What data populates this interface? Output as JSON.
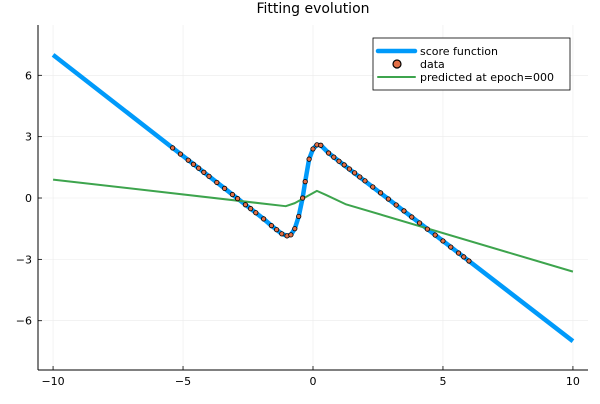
{
  "chart_data": {
    "type": "line",
    "title": "Fitting evolution",
    "xlabel": "",
    "ylabel": "",
    "xlim": [
      -10.58,
      10.58
    ],
    "ylim": [
      -8.41,
      8.46
    ],
    "grid": true,
    "legend_position": "top-right",
    "x_ticks": [
      -10,
      -5,
      0,
      5,
      10
    ],
    "x_tick_labels": [
      "−10",
      "−5",
      "0",
      "5",
      "10"
    ],
    "y_ticks": [
      -6,
      -3,
      0,
      3,
      6
    ],
    "y_tick_labels": [
      "−6",
      "−3",
      "0",
      "3",
      "6"
    ],
    "series": [
      {
        "name": "score function",
        "kind": "line",
        "color": "#009AFA",
        "x": [
          -10,
          -5.4,
          -3,
          -2.2,
          -1.9,
          -1.6,
          -1.4,
          -1.2,
          -1.0,
          -0.85,
          -0.7,
          -0.55,
          -0.4,
          -0.3,
          -0.15,
          0,
          0.15,
          0.3,
          0.6,
          1.0,
          5,
          10
        ],
        "y": [
          7,
          2.45,
          0.07,
          -0.72,
          -1.02,
          -1.35,
          -1.55,
          -1.75,
          -1.85,
          -1.8,
          -1.5,
          -0.9,
          0,
          0.8,
          1.9,
          2.4,
          2.6,
          2.58,
          2.2,
          1.8,
          -2.1,
          -7
        ]
      },
      {
        "name": "data",
        "kind": "scatter",
        "color": "#E26F46",
        "x": [
          -5.4,
          -5.1,
          -4.8,
          -4.6,
          -4.4,
          -4.2,
          -4.0,
          -3.7,
          -3.4,
          -3.1,
          -2.9,
          -2.6,
          -2.4,
          -2.2,
          -1.9,
          -1.6,
          -1.4,
          -1.2,
          -1.0,
          -0.85,
          -0.7,
          -0.55,
          -0.4,
          -0.3,
          -0.15,
          0,
          0.15,
          0.3,
          0.6,
          0.8,
          1.0,
          1.2,
          1.4,
          1.6,
          1.8,
          2.0,
          2.3,
          2.6,
          2.9,
          3.2,
          3.5,
          3.8,
          4.1,
          4.4,
          4.7,
          5.0,
          5.3,
          5.6,
          5.8,
          6.0
        ],
        "y": [
          2.45,
          2.15,
          1.85,
          1.65,
          1.46,
          1.26,
          1.06,
          0.76,
          0.47,
          0.17,
          -0.03,
          -0.33,
          -0.52,
          -0.72,
          -1.02,
          -1.35,
          -1.55,
          -1.75,
          -1.85,
          -1.8,
          -1.5,
          -0.9,
          0,
          0.8,
          1.9,
          2.4,
          2.6,
          2.58,
          2.2,
          2.0,
          1.8,
          1.62,
          1.42,
          1.23,
          1.03,
          0.84,
          0.54,
          0.25,
          -0.05,
          -0.34,
          -0.63,
          -0.93,
          -1.22,
          -1.52,
          -1.81,
          -2.1,
          -2.4,
          -2.69,
          -2.88,
          -3.08
        ]
      },
      {
        "name": "predicted at epoch=000",
        "kind": "line",
        "color": "#3DA44D",
        "x": [
          -10,
          -1.05,
          -0.7,
          0.15,
          0.5,
          1.25,
          10
        ],
        "y": [
          0.9,
          -0.4,
          -0.25,
          0.35,
          0.15,
          -0.3,
          -3.6
        ]
      }
    ]
  }
}
